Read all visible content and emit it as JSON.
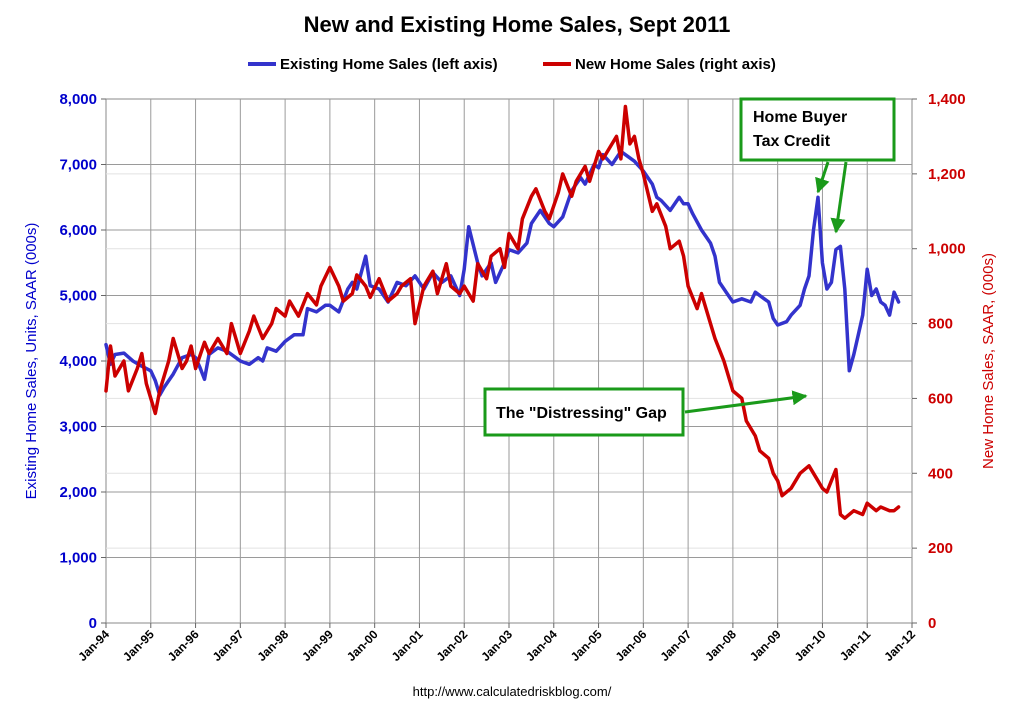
{
  "chart_data": {
    "type": "line",
    "title": "New and Existing Home Sales, Sept 2011",
    "source_url": "http://www.calculatedriskblog.com/",
    "left_axis": {
      "label": "Existing Home Sales, Units, SAAR (000s)",
      "ylim": [
        0,
        8000
      ],
      "ticks": [
        "0",
        "1,000",
        "2,000",
        "3,000",
        "4,000",
        "5,000",
        "6,000",
        "7,000",
        "8,000"
      ],
      "color": "#0000cc"
    },
    "right_axis": {
      "label": "New Home Sales, SAAR, (000s)",
      "ylim": [
        0,
        1400
      ],
      "ticks": [
        "0",
        "200",
        "400",
        "600",
        "800",
        "1,000",
        "1,200",
        "1,400"
      ],
      "color": "#cc0000"
    },
    "x_axis": {
      "range": [
        1994.0,
        2012.0
      ],
      "tick_labels": [
        "Jan-94",
        "Jan-95",
        "Jan-96",
        "Jan-97",
        "Jan-98",
        "Jan-99",
        "Jan-00",
        "Jan-01",
        "Jan-02",
        "Jan-03",
        "Jan-04",
        "Jan-05",
        "Jan-06",
        "Jan-07",
        "Jan-08",
        "Jan-09",
        "Jan-10",
        "Jan-11",
        "Jan-12"
      ]
    },
    "grid": true,
    "legend": {
      "placement": "top-center"
    },
    "series": [
      {
        "name": "Existing Home Sales (left axis)",
        "axis": "left",
        "color": "#3333cc",
        "points": [
          [
            1994.0,
            4250
          ],
          [
            1994.1,
            3950
          ],
          [
            1994.2,
            4100
          ],
          [
            1994.4,
            4120
          ],
          [
            1994.6,
            4000
          ],
          [
            1994.8,
            3920
          ],
          [
            1995.0,
            3850
          ],
          [
            1995.1,
            3700
          ],
          [
            1995.2,
            3480
          ],
          [
            1995.3,
            3600
          ],
          [
            1995.5,
            3800
          ],
          [
            1995.7,
            4050
          ],
          [
            1995.9,
            4100
          ],
          [
            1996.0,
            4050
          ],
          [
            1996.1,
            3900
          ],
          [
            1996.2,
            3720
          ],
          [
            1996.3,
            4100
          ],
          [
            1996.5,
            4200
          ],
          [
            1996.7,
            4150
          ],
          [
            1996.9,
            4050
          ],
          [
            1997.0,
            4000
          ],
          [
            1997.2,
            3950
          ],
          [
            1997.4,
            4050
          ],
          [
            1997.5,
            4000
          ],
          [
            1997.6,
            4200
          ],
          [
            1997.8,
            4150
          ],
          [
            1998.0,
            4300
          ],
          [
            1998.2,
            4400
          ],
          [
            1998.4,
            4400
          ],
          [
            1998.5,
            4800
          ],
          [
            1998.7,
            4750
          ],
          [
            1998.9,
            4850
          ],
          [
            1999.0,
            4850
          ],
          [
            1999.2,
            4750
          ],
          [
            1999.4,
            5100
          ],
          [
            1999.5,
            5200
          ],
          [
            1999.6,
            5100
          ],
          [
            1999.8,
            5600
          ],
          [
            1999.9,
            5150
          ],
          [
            2000.1,
            5100
          ],
          [
            2000.3,
            4900
          ],
          [
            2000.5,
            5200
          ],
          [
            2000.7,
            5150
          ],
          [
            2000.9,
            5300
          ],
          [
            2001.1,
            5100
          ],
          [
            2001.3,
            5350
          ],
          [
            2001.5,
            5200
          ],
          [
            2001.7,
            5300
          ],
          [
            2001.9,
            5000
          ],
          [
            2002.0,
            5400
          ],
          [
            2002.1,
            6050
          ],
          [
            2002.3,
            5500
          ],
          [
            2002.4,
            5300
          ],
          [
            2002.6,
            5500
          ],
          [
            2002.7,
            5200
          ],
          [
            2002.9,
            5500
          ],
          [
            2003.0,
            5700
          ],
          [
            2003.2,
            5650
          ],
          [
            2003.4,
            5800
          ],
          [
            2003.5,
            6100
          ],
          [
            2003.7,
            6300
          ],
          [
            2003.9,
            6100
          ],
          [
            2004.0,
            6050
          ],
          [
            2004.2,
            6200
          ],
          [
            2004.4,
            6600
          ],
          [
            2004.6,
            6800
          ],
          [
            2004.7,
            6700
          ],
          [
            2004.9,
            7000
          ],
          [
            2005.0,
            6950
          ],
          [
            2005.1,
            7150
          ],
          [
            2005.3,
            7000
          ],
          [
            2005.5,
            7200
          ],
          [
            2005.6,
            7150
          ],
          [
            2005.8,
            7050
          ],
          [
            2006.0,
            6900
          ],
          [
            2006.2,
            6700
          ],
          [
            2006.3,
            6500
          ],
          [
            2006.4,
            6450
          ],
          [
            2006.6,
            6300
          ],
          [
            2006.8,
            6500
          ],
          [
            2006.9,
            6400
          ],
          [
            2007.0,
            6400
          ],
          [
            2007.1,
            6250
          ],
          [
            2007.3,
            6000
          ],
          [
            2007.5,
            5800
          ],
          [
            2007.6,
            5600
          ],
          [
            2007.7,
            5200
          ],
          [
            2007.9,
            5000
          ],
          [
            2008.0,
            4900
          ],
          [
            2008.2,
            4950
          ],
          [
            2008.4,
            4900
          ],
          [
            2008.5,
            5050
          ],
          [
            2008.7,
            4950
          ],
          [
            2008.8,
            4900
          ],
          [
            2008.9,
            4650
          ],
          [
            2009.0,
            4550
          ],
          [
            2009.2,
            4600
          ],
          [
            2009.3,
            4700
          ],
          [
            2009.5,
            4850
          ],
          [
            2009.6,
            5100
          ],
          [
            2009.7,
            5300
          ],
          [
            2009.8,
            6000
          ],
          [
            2009.9,
            6500
          ],
          [
            2010.0,
            5500
          ],
          [
            2010.1,
            5100
          ],
          [
            2010.2,
            5200
          ],
          [
            2010.3,
            5700
          ],
          [
            2010.4,
            5750
          ],
          [
            2010.5,
            5100
          ],
          [
            2010.6,
            3850
          ],
          [
            2010.7,
            4100
          ],
          [
            2010.8,
            4400
          ],
          [
            2010.9,
            4700
          ],
          [
            2011.0,
            5400
          ],
          [
            2011.1,
            5000
          ],
          [
            2011.2,
            5100
          ],
          [
            2011.3,
            4900
          ],
          [
            2011.4,
            4850
          ],
          [
            2011.5,
            4700
          ],
          [
            2011.6,
            5050
          ],
          [
            2011.7,
            4900
          ]
        ]
      },
      {
        "name": "New Home Sales (right axis)",
        "axis": "right",
        "color": "#cc0000",
        "points": [
          [
            1994.0,
            620
          ],
          [
            1994.1,
            740
          ],
          [
            1994.2,
            660
          ],
          [
            1994.4,
            700
          ],
          [
            1994.5,
            620
          ],
          [
            1994.7,
            680
          ],
          [
            1994.8,
            720
          ],
          [
            1994.9,
            640
          ],
          [
            1995.0,
            600
          ],
          [
            1995.1,
            560
          ],
          [
            1995.2,
            620
          ],
          [
            1995.4,
            700
          ],
          [
            1995.5,
            760
          ],
          [
            1995.7,
            680
          ],
          [
            1995.8,
            700
          ],
          [
            1995.9,
            740
          ],
          [
            1996.0,
            680
          ],
          [
            1996.2,
            750
          ],
          [
            1996.3,
            720
          ],
          [
            1996.5,
            760
          ],
          [
            1996.7,
            720
          ],
          [
            1996.8,
            800
          ],
          [
            1996.9,
            760
          ],
          [
            1997.0,
            720
          ],
          [
            1997.2,
            780
          ],
          [
            1997.3,
            820
          ],
          [
            1997.5,
            760
          ],
          [
            1997.7,
            800
          ],
          [
            1997.8,
            840
          ],
          [
            1998.0,
            820
          ],
          [
            1998.1,
            860
          ],
          [
            1998.3,
            820
          ],
          [
            1998.5,
            880
          ],
          [
            1998.7,
            850
          ],
          [
            1998.8,
            900
          ],
          [
            1999.0,
            950
          ],
          [
            1999.2,
            900
          ],
          [
            1999.3,
            860
          ],
          [
            1999.5,
            880
          ],
          [
            1999.6,
            930
          ],
          [
            1999.8,
            900
          ],
          [
            1999.9,
            870
          ],
          [
            2000.1,
            920
          ],
          [
            2000.3,
            860
          ],
          [
            2000.5,
            880
          ],
          [
            2000.6,
            900
          ],
          [
            2000.8,
            920
          ],
          [
            2000.9,
            800
          ],
          [
            2001.1,
            900
          ],
          [
            2001.3,
            940
          ],
          [
            2001.4,
            880
          ],
          [
            2001.6,
            960
          ],
          [
            2001.7,
            900
          ],
          [
            2001.9,
            880
          ],
          [
            2002.0,
            900
          ],
          [
            2002.2,
            860
          ],
          [
            2002.3,
            960
          ],
          [
            2002.5,
            920
          ],
          [
            2002.6,
            980
          ],
          [
            2002.8,
            1000
          ],
          [
            2002.9,
            950
          ],
          [
            2003.0,
            1040
          ],
          [
            2003.2,
            1000
          ],
          [
            2003.3,
            1080
          ],
          [
            2003.5,
            1140
          ],
          [
            2003.6,
            1160
          ],
          [
            2003.8,
            1100
          ],
          [
            2003.9,
            1080
          ],
          [
            2004.1,
            1150
          ],
          [
            2004.2,
            1200
          ],
          [
            2004.4,
            1140
          ],
          [
            2004.5,
            1180
          ],
          [
            2004.7,
            1220
          ],
          [
            2004.8,
            1180
          ],
          [
            2005.0,
            1260
          ],
          [
            2005.1,
            1240
          ],
          [
            2005.3,
            1280
          ],
          [
            2005.4,
            1300
          ],
          [
            2005.5,
            1240
          ],
          [
            2005.6,
            1380
          ],
          [
            2005.7,
            1280
          ],
          [
            2005.8,
            1300
          ],
          [
            2005.9,
            1240
          ],
          [
            2006.0,
            1200
          ],
          [
            2006.2,
            1100
          ],
          [
            2006.3,
            1120
          ],
          [
            2006.5,
            1060
          ],
          [
            2006.6,
            1000
          ],
          [
            2006.8,
            1020
          ],
          [
            2006.9,
            980
          ],
          [
            2007.0,
            900
          ],
          [
            2007.2,
            840
          ],
          [
            2007.3,
            880
          ],
          [
            2007.5,
            800
          ],
          [
            2007.6,
            760
          ],
          [
            2007.8,
            700
          ],
          [
            2007.9,
            660
          ],
          [
            2008.0,
            620
          ],
          [
            2008.2,
            600
          ],
          [
            2008.3,
            540
          ],
          [
            2008.5,
            500
          ],
          [
            2008.6,
            460
          ],
          [
            2008.8,
            440
          ],
          [
            2008.9,
            400
          ],
          [
            2009.0,
            380
          ],
          [
            2009.1,
            340
          ],
          [
            2009.3,
            360
          ],
          [
            2009.5,
            400
          ],
          [
            2009.7,
            420
          ],
          [
            2009.8,
            400
          ],
          [
            2009.9,
            380
          ],
          [
            2010.0,
            360
          ],
          [
            2010.1,
            350
          ],
          [
            2010.3,
            410
          ],
          [
            2010.4,
            290
          ],
          [
            2010.5,
            280
          ],
          [
            2010.7,
            300
          ],
          [
            2010.9,
            290
          ],
          [
            2011.0,
            320
          ],
          [
            2011.2,
            300
          ],
          [
            2011.3,
            310
          ],
          [
            2011.5,
            300
          ],
          [
            2011.6,
            300
          ],
          [
            2011.7,
            310
          ]
        ]
      }
    ],
    "annotations": [
      {
        "text_lines": [
          "Home Buyer",
          "Tax Credit"
        ]
      },
      {
        "text_lines": [
          "The \"Distressing\" Gap"
        ]
      }
    ]
  }
}
